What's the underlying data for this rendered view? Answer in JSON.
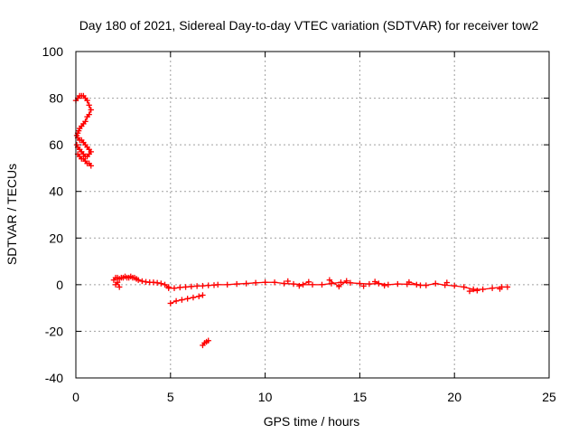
{
  "chart_data": {
    "type": "scatter",
    "title": "Day 180 of 2021, Sidereal Day-to-day VTEC variation (SDTVAR) for receiver tow2",
    "xlabel": "GPS time / hours",
    "ylabel": "SDTVAR / TECUs",
    "xlim": [
      0,
      25
    ],
    "ylim": [
      -40,
      100
    ],
    "xticks": [
      0,
      5,
      10,
      15,
      20,
      25
    ],
    "yticks": [
      -40,
      -20,
      0,
      20,
      40,
      60,
      80,
      100
    ],
    "grid": true,
    "marker": "plus",
    "color": "#ff0000",
    "segments": [
      {
        "name": "early-high",
        "x": [
          0.0,
          0.1,
          0.2,
          0.3,
          0.4,
          0.5,
          0.6,
          0.7,
          0.8,
          0.7,
          0.6,
          0.5,
          0.4,
          0.3,
          0.2,
          0.15,
          0.1,
          0.05,
          0.1,
          0.2,
          0.3,
          0.4,
          0.5,
          0.6,
          0.7,
          0.8,
          0.7,
          0.6,
          0.5,
          0.4,
          0.3,
          0.2,
          0.1,
          0.05,
          0.1,
          0.2,
          0.3,
          0.4,
          0.5,
          0.6,
          0.7,
          0.8
        ],
        "y": [
          79,
          80,
          81,
          81,
          81,
          80,
          79,
          77,
          75,
          73,
          72,
          70,
          69,
          68,
          67,
          66,
          65,
          64,
          63,
          62,
          62,
          61,
          60,
          59,
          58,
          57,
          56,
          55,
          55,
          56,
          57,
          58,
          59,
          60,
          56,
          55,
          54,
          54,
          53,
          52,
          52,
          51
        ]
      },
      {
        "name": "main-band-start",
        "x": [
          2.0,
          2.1,
          2.2,
          2.3,
          2.4,
          2.5,
          2.6,
          2.7,
          2.8,
          2.9,
          3.0,
          3.1,
          3.2,
          3.3,
          3.5,
          3.7,
          3.9,
          4.1,
          4.3,
          4.5,
          4.7,
          4.9,
          2.1,
          2.2,
          2.3
        ],
        "y": [
          2,
          3,
          3,
          2.5,
          3,
          3,
          3.5,
          3,
          3,
          3.5,
          3,
          3,
          2.5,
          2,
          1.5,
          1.2,
          1,
          1,
          0.8,
          0.5,
          0,
          -1,
          0,
          1,
          -1
        ]
      },
      {
        "name": "main-band-low",
        "x": [
          4.9,
          5.2,
          5.5,
          5.8,
          6.1,
          6.4,
          6.7,
          7.0,
          7.3
        ],
        "y": [
          -1.5,
          -1.5,
          -1.2,
          -1.0,
          -0.8,
          -0.6,
          -0.5,
          -0.3,
          -0.2
        ]
      },
      {
        "name": "main-band-mid",
        "x": [
          7.5,
          8.0,
          8.5,
          9.0,
          9.5,
          10.0,
          10.5,
          11.0,
          11.5,
          12.0,
          12.5,
          13.0,
          13.5,
          14.0,
          14.5,
          15.0,
          15.5,
          16.0,
          16.5,
          17.0,
          17.5,
          18.0,
          18.5,
          19.0,
          19.5,
          20.0,
          20.5,
          21.0,
          21.5,
          22.0,
          22.5,
          22.8
        ],
        "y": [
          0,
          0,
          0.3,
          0.5,
          0.8,
          1,
          1,
          0.5,
          0.3,
          0,
          0,
          0,
          0.5,
          1,
          0.8,
          0.5,
          0.3,
          0.5,
          0,
          0.3,
          0.2,
          0,
          -0.3,
          0.5,
          -0.2,
          -0.5,
          -1,
          -2,
          -2,
          -1.5,
          -1,
          -1
        ]
      },
      {
        "name": "main-band-scatter",
        "x": [
          11.2,
          11.8,
          12.3,
          13.4,
          13.9,
          14.3,
          15.2,
          15.8,
          16.3,
          17.6,
          18.2,
          19.6,
          20.8,
          21.2,
          22.4
        ],
        "y": [
          1.5,
          -0.5,
          1.2,
          2,
          -0.8,
          1.6,
          -0.6,
          1.3,
          -0.4,
          1.1,
          -0.3,
          0.9,
          -2.8,
          -2.5,
          -1.8
        ]
      },
      {
        "name": "negative-branch",
        "x": [
          5.0,
          5.3,
          5.6,
          5.9,
          6.2,
          6.5,
          6.7
        ],
        "y": [
          -8,
          -7,
          -6.5,
          -6,
          -5.5,
          -5,
          -4.5
        ]
      },
      {
        "name": "deep-negative",
        "x": [
          6.7,
          6.8,
          6.9,
          7.0
        ],
        "y": [
          -26,
          -25,
          -24.5,
          -24
        ]
      }
    ]
  }
}
